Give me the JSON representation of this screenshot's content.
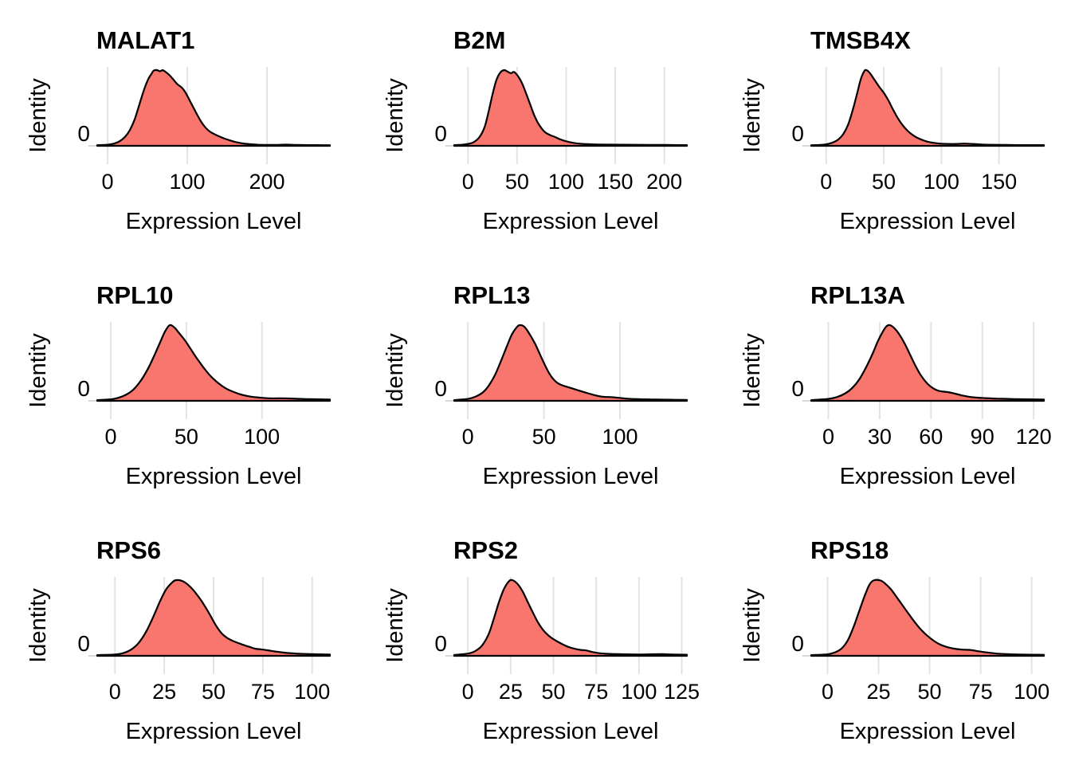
{
  "figure": {
    "xlabel": "Expression Level",
    "ylabel": "Identity",
    "y_tick_label": "0",
    "fill_color": "#F8766D",
    "line_color": "#000000",
    "grid_color": "#E3E3E3",
    "tick_color": "#D8D8D8",
    "background": "#FFFFFF",
    "rows": 3,
    "cols": 3
  },
  "chart_data": [
    {
      "type": "area",
      "title": "MALAT1",
      "xlabel": "Expression Level",
      "ylabel": "Identity",
      "y_tick_labels": [
        "0"
      ],
      "x_ticks": [
        0,
        100,
        200
      ],
      "xlim": [
        -13,
        279
      ],
      "grid": "vertical-major",
      "legend": "none",
      "peak_x": 62,
      "points": [
        [
          -13,
          0.008
        ],
        [
          0,
          0.015
        ],
        [
          8,
          0.03
        ],
        [
          15,
          0.06
        ],
        [
          22,
          0.12
        ],
        [
          28,
          0.21
        ],
        [
          34,
          0.35
        ],
        [
          40,
          0.55
        ],
        [
          46,
          0.75
        ],
        [
          51,
          0.88
        ],
        [
          55,
          0.95
        ],
        [
          58,
          0.995
        ],
        [
          62,
          1.0
        ],
        [
          66,
          0.985
        ],
        [
          69,
          1.0
        ],
        [
          73,
          0.975
        ],
        [
          78,
          0.93
        ],
        [
          83,
          0.87
        ],
        [
          88,
          0.81
        ],
        [
          93,
          0.77
        ],
        [
          98,
          0.7
        ],
        [
          103,
          0.6
        ],
        [
          108,
          0.5
        ],
        [
          113,
          0.4
        ],
        [
          118,
          0.31
        ],
        [
          123,
          0.24
        ],
        [
          128,
          0.19
        ],
        [
          134,
          0.155
        ],
        [
          140,
          0.125
        ],
        [
          147,
          0.095
        ],
        [
          154,
          0.07
        ],
        [
          161,
          0.05
        ],
        [
          169,
          0.033
        ],
        [
          178,
          0.022
        ],
        [
          188,
          0.015
        ],
        [
          200,
          0.012
        ],
        [
          212,
          0.013
        ],
        [
          224,
          0.016
        ],
        [
          236,
          0.013
        ],
        [
          250,
          0.01
        ],
        [
          264,
          0.009
        ],
        [
          279,
          0.008
        ]
      ]
    },
    {
      "type": "area",
      "title": "B2M",
      "xlabel": "Expression Level",
      "ylabel": "Identity",
      "y_tick_labels": [
        "0"
      ],
      "x_ticks": [
        0,
        50,
        100,
        150,
        200
      ],
      "xlim": [
        -14,
        223
      ],
      "grid": "vertical-major",
      "legend": "none",
      "peak_x": 37,
      "points": [
        [
          -14,
          0.01
        ],
        [
          -6,
          0.015
        ],
        [
          0,
          0.025
        ],
        [
          6,
          0.05
        ],
        [
          12,
          0.12
        ],
        [
          17,
          0.25
        ],
        [
          21,
          0.45
        ],
        [
          25,
          0.68
        ],
        [
          29,
          0.87
        ],
        [
          33,
          0.97
        ],
        [
          37,
          1.0
        ],
        [
          41,
          0.975
        ],
        [
          44,
          0.96
        ],
        [
          47,
          0.975
        ],
        [
          51,
          0.92
        ],
        [
          55,
          0.83
        ],
        [
          59,
          0.7
        ],
        [
          63,
          0.56
        ],
        [
          67,
          0.42
        ],
        [
          71,
          0.31
        ],
        [
          75,
          0.23
        ],
        [
          79,
          0.175
        ],
        [
          84,
          0.14
        ],
        [
          89,
          0.115
        ],
        [
          94,
          0.085
        ],
        [
          100,
          0.06
        ],
        [
          107,
          0.04
        ],
        [
          114,
          0.028
        ],
        [
          122,
          0.022
        ],
        [
          132,
          0.018
        ],
        [
          144,
          0.016
        ],
        [
          158,
          0.015
        ],
        [
          172,
          0.014
        ],
        [
          186,
          0.013
        ],
        [
          200,
          0.012
        ],
        [
          212,
          0.01
        ],
        [
          223,
          0.01
        ]
      ]
    },
    {
      "type": "area",
      "title": "TMSB4X",
      "xlabel": "Expression Level",
      "ylabel": "Identity",
      "y_tick_labels": [
        "0"
      ],
      "x_ticks": [
        0,
        50,
        100,
        150
      ],
      "xlim": [
        -13,
        189
      ],
      "grid": "vertical-major",
      "legend": "none",
      "peak_x": 35,
      "points": [
        [
          -13,
          0.008
        ],
        [
          -5,
          0.012
        ],
        [
          0,
          0.02
        ],
        [
          6,
          0.045
        ],
        [
          11,
          0.09
        ],
        [
          15,
          0.16
        ],
        [
          19,
          0.28
        ],
        [
          23,
          0.47
        ],
        [
          27,
          0.7
        ],
        [
          30,
          0.88
        ],
        [
          33,
          0.985
        ],
        [
          35,
          1.0
        ],
        [
          38,
          0.96
        ],
        [
          42,
          0.87
        ],
        [
          46,
          0.78
        ],
        [
          50,
          0.7
        ],
        [
          54,
          0.6
        ],
        [
          58,
          0.48
        ],
        [
          62,
          0.37
        ],
        [
          66,
          0.28
        ],
        [
          70,
          0.21
        ],
        [
          74,
          0.155
        ],
        [
          78,
          0.115
        ],
        [
          83,
          0.08
        ],
        [
          88,
          0.055
        ],
        [
          93,
          0.04
        ],
        [
          99,
          0.03
        ],
        [
          106,
          0.025
        ],
        [
          113,
          0.025
        ],
        [
          120,
          0.03
        ],
        [
          127,
          0.025
        ],
        [
          135,
          0.018
        ],
        [
          145,
          0.014
        ],
        [
          157,
          0.012
        ],
        [
          170,
          0.01
        ],
        [
          180,
          0.01
        ],
        [
          189,
          0.01
        ]
      ]
    },
    {
      "type": "area",
      "title": "RPL10",
      "xlabel": "Expression Level",
      "ylabel": "Identity",
      "y_tick_labels": [
        "0"
      ],
      "x_ticks": [
        0,
        50,
        100
      ],
      "xlim": [
        -9,
        145
      ],
      "grid": "vertical-major",
      "legend": "none",
      "peak_x": 39,
      "points": [
        [
          -9,
          0.01
        ],
        [
          0,
          0.02
        ],
        [
          5,
          0.04
        ],
        [
          10,
          0.08
        ],
        [
          15,
          0.15
        ],
        [
          20,
          0.27
        ],
        [
          25,
          0.44
        ],
        [
          29,
          0.61
        ],
        [
          33,
          0.79
        ],
        [
          36,
          0.92
        ],
        [
          39,
          1.0
        ],
        [
          42,
          0.97
        ],
        [
          45,
          0.9
        ],
        [
          49,
          0.8
        ],
        [
          53,
          0.68
        ],
        [
          57,
          0.56
        ],
        [
          61,
          0.45
        ],
        [
          65,
          0.35
        ],
        [
          69,
          0.27
        ],
        [
          73,
          0.205
        ],
        [
          77,
          0.155
        ],
        [
          81,
          0.12
        ],
        [
          85,
          0.09
        ],
        [
          90,
          0.065
        ],
        [
          95,
          0.05
        ],
        [
          100,
          0.04
        ],
        [
          106,
          0.033
        ],
        [
          112,
          0.034
        ],
        [
          118,
          0.032
        ],
        [
          125,
          0.026
        ],
        [
          131,
          0.022
        ],
        [
          138,
          0.02
        ],
        [
          145,
          0.018
        ]
      ]
    },
    {
      "type": "area",
      "title": "RPL13",
      "xlabel": "Expression Level",
      "ylabel": "Identity",
      "y_tick_labels": [
        "0"
      ],
      "x_ticks": [
        0,
        50,
        100
      ],
      "xlim": [
        -9,
        144
      ],
      "grid": "vertical-major",
      "legend": "none",
      "peak_x": 34,
      "points": [
        [
          -9,
          0.01
        ],
        [
          0,
          0.025
        ],
        [
          5,
          0.055
        ],
        [
          10,
          0.115
        ],
        [
          14,
          0.21
        ],
        [
          18,
          0.35
        ],
        [
          22,
          0.54
        ],
        [
          26,
          0.74
        ],
        [
          29,
          0.88
        ],
        [
          32,
          0.97
        ],
        [
          34,
          1.0
        ],
        [
          37,
          0.98
        ],
        [
          40,
          0.9
        ],
        [
          44,
          0.76
        ],
        [
          47,
          0.63
        ],
        [
          50,
          0.5
        ],
        [
          53,
          0.38
        ],
        [
          56,
          0.29
        ],
        [
          59,
          0.235
        ],
        [
          62,
          0.205
        ],
        [
          66,
          0.18
        ],
        [
          70,
          0.155
        ],
        [
          74,
          0.13
        ],
        [
          78,
          0.105
        ],
        [
          82,
          0.082
        ],
        [
          86,
          0.062
        ],
        [
          90,
          0.052
        ],
        [
          94,
          0.05
        ],
        [
          99,
          0.04
        ],
        [
          105,
          0.028
        ],
        [
          112,
          0.022
        ],
        [
          120,
          0.018
        ],
        [
          128,
          0.016
        ],
        [
          136,
          0.014
        ],
        [
          144,
          0.013
        ]
      ]
    },
    {
      "type": "area",
      "title": "RPL13A",
      "xlabel": "Expression Level",
      "ylabel": "Identity",
      "y_tick_labels": [
        "0"
      ],
      "x_ticks": [
        0,
        30,
        60,
        90,
        120
      ],
      "xlim": [
        -10,
        126
      ],
      "grid": "vertical-major",
      "legend": "none",
      "peak_x": 36,
      "points": [
        [
          -10,
          0.01
        ],
        [
          0,
          0.025
        ],
        [
          5,
          0.05
        ],
        [
          10,
          0.1
        ],
        [
          14,
          0.17
        ],
        [
          18,
          0.28
        ],
        [
          22,
          0.44
        ],
        [
          26,
          0.63
        ],
        [
          29,
          0.79
        ],
        [
          32,
          0.92
        ],
        [
          34,
          0.985
        ],
        [
          36,
          1.0
        ],
        [
          39,
          0.95
        ],
        [
          42,
          0.86
        ],
        [
          45,
          0.74
        ],
        [
          48,
          0.6
        ],
        [
          51,
          0.46
        ],
        [
          54,
          0.34
        ],
        [
          57,
          0.25
        ],
        [
          60,
          0.185
        ],
        [
          63,
          0.145
        ],
        [
          66,
          0.125
        ],
        [
          70,
          0.115
        ],
        [
          74,
          0.095
        ],
        [
          78,
          0.072
        ],
        [
          82,
          0.055
        ],
        [
          87,
          0.042
        ],
        [
          92,
          0.036
        ],
        [
          98,
          0.03
        ],
        [
          104,
          0.026
        ],
        [
          110,
          0.022
        ],
        [
          117,
          0.02
        ],
        [
          126,
          0.018
        ]
      ]
    },
    {
      "type": "area",
      "title": "RPS6",
      "xlabel": "Expression Level",
      "ylabel": "Identity",
      "y_tick_labels": [
        "0"
      ],
      "x_ticks": [
        0,
        25,
        50,
        75,
        100
      ],
      "xlim": [
        -9,
        109
      ],
      "grid": "vertical-major",
      "legend": "none",
      "peak_x": 31,
      "points": [
        [
          -9,
          0.01
        ],
        [
          0,
          0.018
        ],
        [
          4,
          0.035
        ],
        [
          8,
          0.08
        ],
        [
          12,
          0.17
        ],
        [
          16,
          0.33
        ],
        [
          20,
          0.55
        ],
        [
          23,
          0.73
        ],
        [
          26,
          0.88
        ],
        [
          29,
          0.97
        ],
        [
          31,
          1.0
        ],
        [
          34,
          0.99
        ],
        [
          37,
          0.94
        ],
        [
          40,
          0.86
        ],
        [
          44,
          0.72
        ],
        [
          48,
          0.55
        ],
        [
          51,
          0.41
        ],
        [
          54,
          0.3
        ],
        [
          57,
          0.235
        ],
        [
          60,
          0.195
        ],
        [
          64,
          0.155
        ],
        [
          68,
          0.12
        ],
        [
          71,
          0.095
        ],
        [
          74,
          0.085
        ],
        [
          77,
          0.075
        ],
        [
          81,
          0.058
        ],
        [
          86,
          0.042
        ],
        [
          92,
          0.03
        ],
        [
          98,
          0.024
        ],
        [
          104,
          0.02
        ],
        [
          109,
          0.018
        ]
      ]
    },
    {
      "type": "area",
      "title": "RPS2",
      "xlabel": "Expression Level",
      "ylabel": "Identity",
      "y_tick_labels": [
        "0"
      ],
      "x_ticks": [
        0,
        25,
        50,
        75,
        100,
        125
      ],
      "xlim": [
        -8,
        128
      ],
      "grid": "vertical-major",
      "legend": "none",
      "peak_x": 26,
      "points": [
        [
          -8,
          0.012
        ],
        [
          0,
          0.03
        ],
        [
          4,
          0.06
        ],
        [
          8,
          0.13
        ],
        [
          12,
          0.28
        ],
        [
          15,
          0.48
        ],
        [
          18,
          0.7
        ],
        [
          21,
          0.88
        ],
        [
          24,
          0.985
        ],
        [
          26,
          1.0
        ],
        [
          29,
          0.95
        ],
        [
          32,
          0.85
        ],
        [
          35,
          0.71
        ],
        [
          38,
          0.57
        ],
        [
          41,
          0.44
        ],
        [
          44,
          0.34
        ],
        [
          47,
          0.27
        ],
        [
          50,
          0.22
        ],
        [
          53,
          0.18
        ],
        [
          56,
          0.145
        ],
        [
          59,
          0.115
        ],
        [
          63,
          0.09
        ],
        [
          66,
          0.078
        ],
        [
          69,
          0.072
        ],
        [
          73,
          0.05
        ],
        [
          77,
          0.035
        ],
        [
          82,
          0.026
        ],
        [
          88,
          0.022
        ],
        [
          94,
          0.02
        ],
        [
          101,
          0.018
        ],
        [
          108,
          0.021
        ],
        [
          114,
          0.022
        ],
        [
          120,
          0.018
        ],
        [
          128,
          0.015
        ]
      ]
    },
    {
      "type": "area",
      "title": "RPS18",
      "xlabel": "Expression Level",
      "ylabel": "Identity",
      "y_tick_labels": [
        "0"
      ],
      "x_ticks": [
        0,
        25,
        50,
        75,
        100
      ],
      "xlim": [
        -8,
        106
      ],
      "grid": "vertical-major",
      "legend": "none",
      "peak_x": 23,
      "points": [
        [
          -8,
          0.01
        ],
        [
          0,
          0.02
        ],
        [
          4,
          0.05
        ],
        [
          7,
          0.1
        ],
        [
          10,
          0.21
        ],
        [
          13,
          0.4
        ],
        [
          16,
          0.63
        ],
        [
          19,
          0.85
        ],
        [
          21,
          0.96
        ],
        [
          23,
          1.0
        ],
        [
          26,
          0.995
        ],
        [
          28,
          0.96
        ],
        [
          31,
          0.88
        ],
        [
          34,
          0.77
        ],
        [
          38,
          0.62
        ],
        [
          42,
          0.47
        ],
        [
          46,
          0.34
        ],
        [
          50,
          0.24
        ],
        [
          54,
          0.165
        ],
        [
          58,
          0.12
        ],
        [
          62,
          0.095
        ],
        [
          66,
          0.082
        ],
        [
          70,
          0.078
        ],
        [
          74,
          0.06
        ],
        [
          78,
          0.045
        ],
        [
          83,
          0.03
        ],
        [
          88,
          0.022
        ],
        [
          94,
          0.017
        ],
        [
          100,
          0.015
        ],
        [
          106,
          0.014
        ]
      ]
    }
  ]
}
